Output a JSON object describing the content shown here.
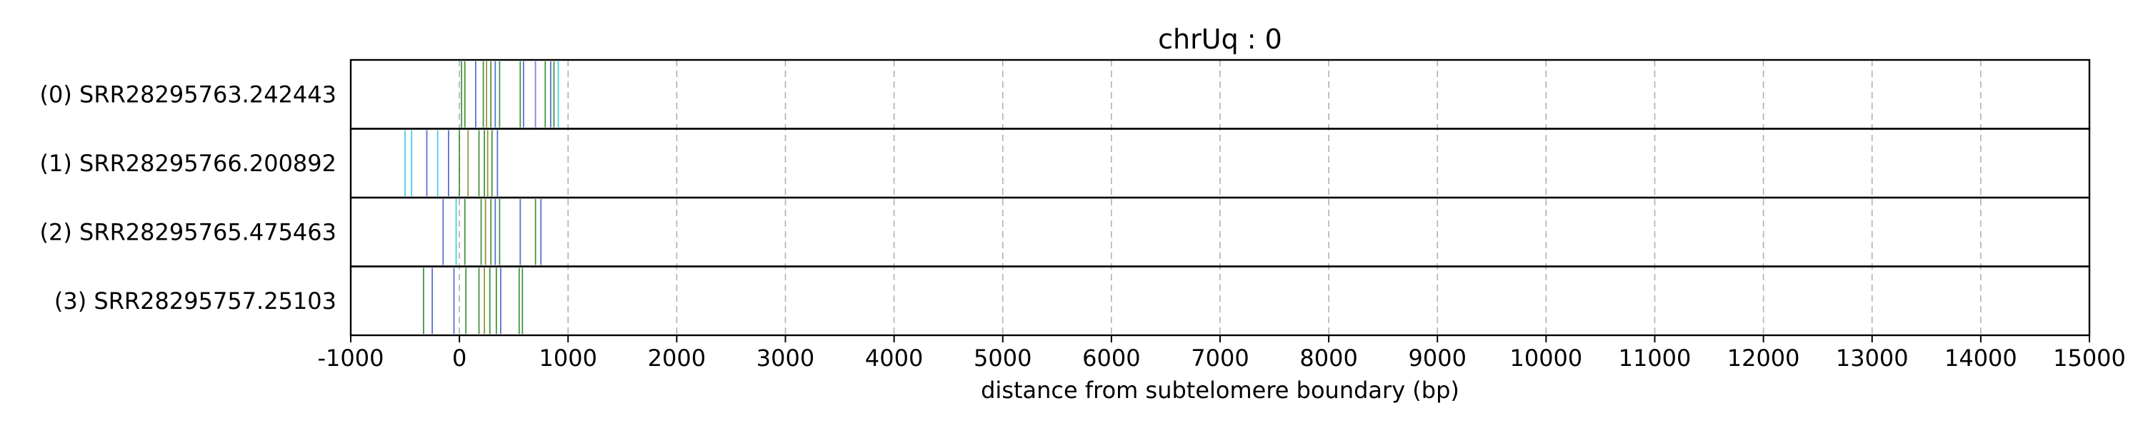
{
  "chart_data": {
    "type": "event_track",
    "title": "chrUq : 0",
    "xlabel": "distance from subtelomere boundary (bp)",
    "xlim": [
      -1000,
      15000
    ],
    "xticks": [
      -1000,
      0,
      1000,
      2000,
      3000,
      4000,
      5000,
      6000,
      7000,
      8000,
      9000,
      10000,
      11000,
      12000,
      13000,
      14000,
      15000
    ],
    "grid": "vertical dashed",
    "colors": {
      "green": "#2e8b2e",
      "blue": "#4a5fd0",
      "cyan": "#39c8e0",
      "olive": "#8a8a20",
      "purple": "#8a6ad0",
      "grid": "#b0b0b0"
    },
    "reads": [
      {
        "label": "(0) SRR28295763.242443",
        "marks": [
          {
            "x": 20,
            "color": "green"
          },
          {
            "x": 50,
            "color": "green"
          },
          {
            "x": 150,
            "color": "blue"
          },
          {
            "x": 220,
            "color": "green"
          },
          {
            "x": 250,
            "color": "olive"
          },
          {
            "x": 290,
            "color": "green"
          },
          {
            "x": 330,
            "color": "blue"
          },
          {
            "x": 370,
            "color": "green"
          },
          {
            "x": 560,
            "color": "green"
          },
          {
            "x": 590,
            "color": "blue"
          },
          {
            "x": 700,
            "color": "purple"
          },
          {
            "x": 790,
            "color": "green"
          },
          {
            "x": 840,
            "color": "blue"
          },
          {
            "x": 870,
            "color": "green"
          },
          {
            "x": 910,
            "color": "cyan"
          }
        ]
      },
      {
        "label": "(1) SRR28295766.200892",
        "marks": [
          {
            "x": -500,
            "color": "cyan"
          },
          {
            "x": -440,
            "color": "cyan"
          },
          {
            "x": -300,
            "color": "blue"
          },
          {
            "x": -200,
            "color": "cyan"
          },
          {
            "x": -100,
            "color": "blue"
          },
          {
            "x": 0,
            "color": "green"
          },
          {
            "x": 80,
            "color": "olive"
          },
          {
            "x": 180,
            "color": "green"
          },
          {
            "x": 230,
            "color": "green"
          },
          {
            "x": 260,
            "color": "olive"
          },
          {
            "x": 300,
            "color": "green"
          },
          {
            "x": 350,
            "color": "blue"
          }
        ]
      },
      {
        "label": "(2) SRR28295765.475463",
        "marks": [
          {
            "x": -150,
            "color": "blue"
          },
          {
            "x": -30,
            "color": "cyan"
          },
          {
            "x": 50,
            "color": "green"
          },
          {
            "x": 200,
            "color": "green"
          },
          {
            "x": 240,
            "color": "olive"
          },
          {
            "x": 290,
            "color": "green"
          },
          {
            "x": 330,
            "color": "blue"
          },
          {
            "x": 370,
            "color": "green"
          },
          {
            "x": 560,
            "color": "blue"
          },
          {
            "x": 700,
            "color": "green"
          },
          {
            "x": 750,
            "color": "blue"
          }
        ]
      },
      {
        "label": "(3) SRR28295757.25103",
        "marks": [
          {
            "x": -330,
            "color": "green"
          },
          {
            "x": -250,
            "color": "blue"
          },
          {
            "x": -50,
            "color": "blue"
          },
          {
            "x": 60,
            "color": "green"
          },
          {
            "x": 180,
            "color": "green"
          },
          {
            "x": 230,
            "color": "olive"
          },
          {
            "x": 280,
            "color": "green"
          },
          {
            "x": 340,
            "color": "green"
          },
          {
            "x": 380,
            "color": "blue"
          },
          {
            "x": 550,
            "color": "green"
          },
          {
            "x": 580,
            "color": "green"
          }
        ]
      }
    ]
  }
}
